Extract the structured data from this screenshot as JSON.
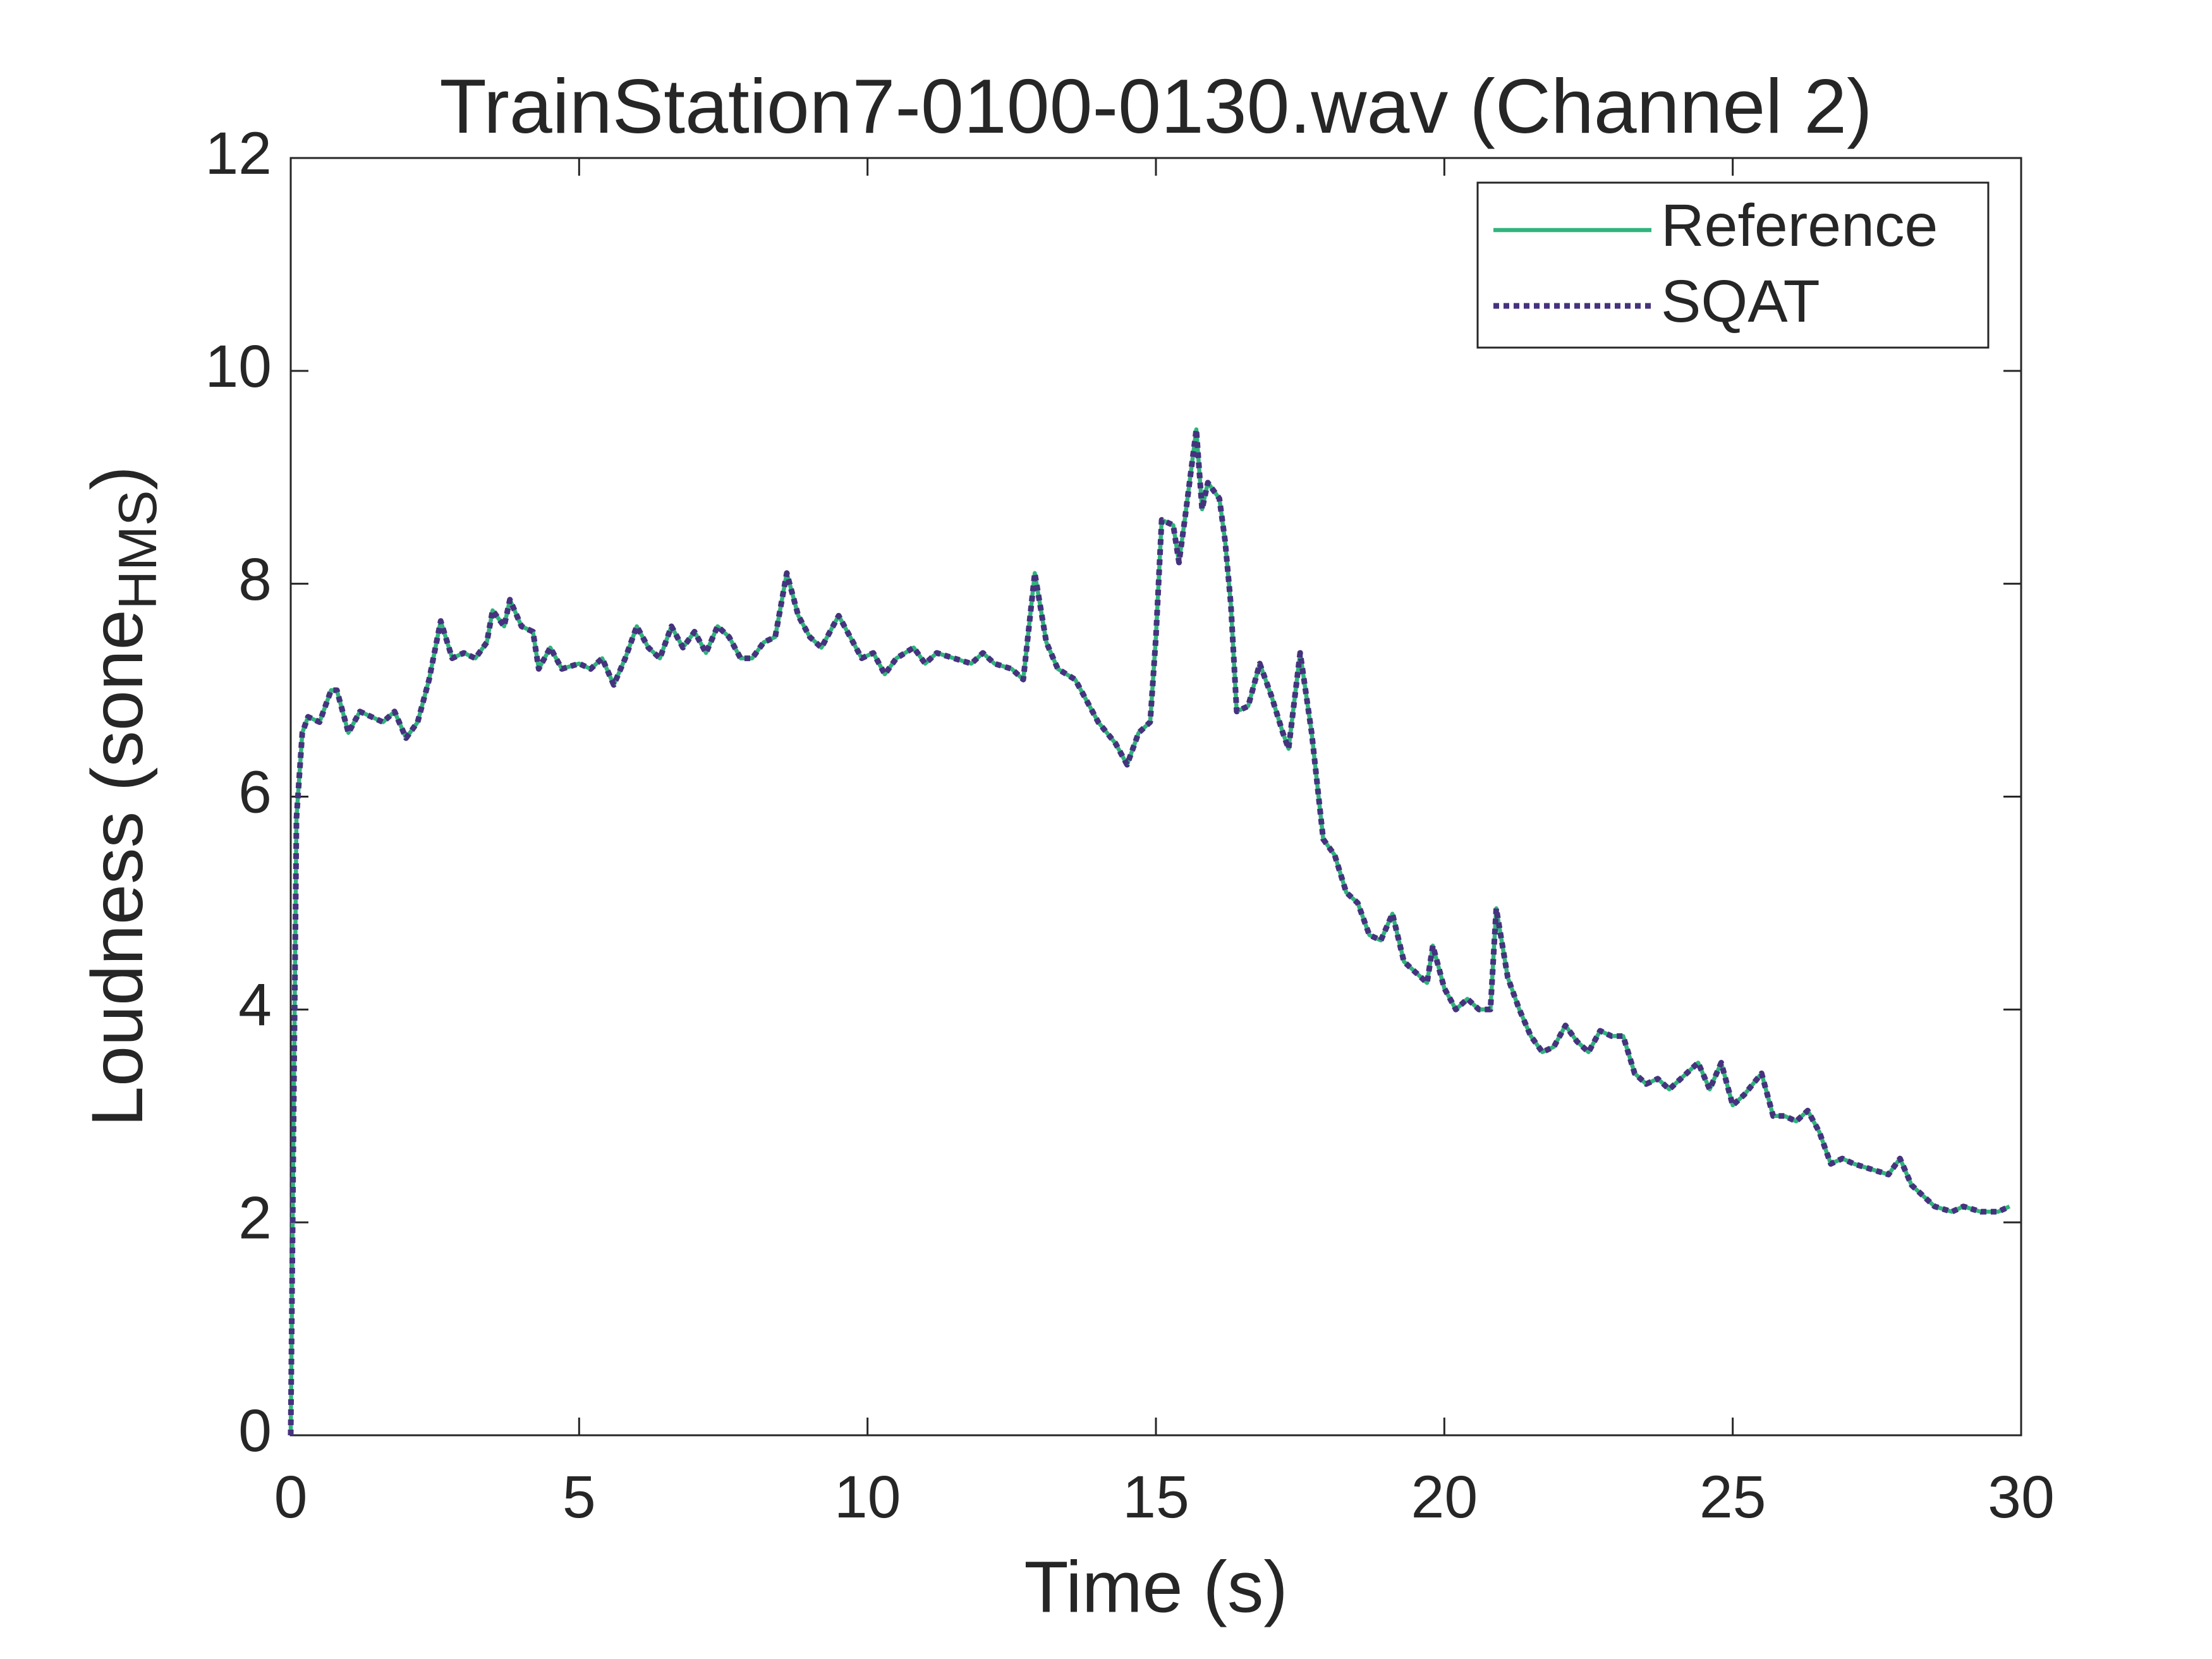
{
  "chart_data": {
    "type": "line",
    "title": "TrainStation7-0100-0130.wav (Channel 2)",
    "xlabel": "Time (s)",
    "ylabel": {
      "text": "Loudness (sone",
      "subscript": "HMS",
      "suffix": ")"
    },
    "x": [
      0,
      0.05,
      0.1,
      0.2,
      0.3,
      0.5,
      0.7,
      0.8,
      1.0,
      1.2,
      1.4,
      1.6,
      1.8,
      2.0,
      2.2,
      2.4,
      2.6,
      2.8,
      3.0,
      3.2,
      3.4,
      3.5,
      3.7,
      3.8,
      4.0,
      4.2,
      4.3,
      4.5,
      4.7,
      5.0,
      5.2,
      5.4,
      5.6,
      5.8,
      6.0,
      6.2,
      6.4,
      6.6,
      6.8,
      7.0,
      7.2,
      7.4,
      7.6,
      7.8,
      8.0,
      8.2,
      8.4,
      8.6,
      8.8,
      9.0,
      9.2,
      9.5,
      9.7,
      9.9,
      10.1,
      10.3,
      10.5,
      10.8,
      11.0,
      11.2,
      11.5,
      11.8,
      12.0,
      12.2,
      12.5,
      12.7,
      12.9,
      13.1,
      13.3,
      13.6,
      13.8,
      14.0,
      14.3,
      14.5,
      14.7,
      14.9,
      15.0,
      15.1,
      15.3,
      15.4,
      15.5,
      15.7,
      15.8,
      15.9,
      16.1,
      16.2,
      16.3,
      16.4,
      16.6,
      16.8,
      17.0,
      17.2,
      17.3,
      17.5,
      17.7,
      17.9,
      18.1,
      18.3,
      18.5,
      18.7,
      18.9,
      19.1,
      19.3,
      19.5,
      19.7,
      19.8,
      20.0,
      20.2,
      20.4,
      20.6,
      20.8,
      20.9,
      21.1,
      21.3,
      21.5,
      21.7,
      21.9,
      22.1,
      22.3,
      22.5,
      22.7,
      22.9,
      23.1,
      23.3,
      23.5,
      23.7,
      23.9,
      24.1,
      24.4,
      24.6,
      24.8,
      25.0,
      25.2,
      25.5,
      25.7,
      25.9,
      26.1,
      26.3,
      26.5,
      26.7,
      26.9,
      27.1,
      27.4,
      27.7,
      27.9,
      28.1,
      28.3,
      28.5,
      28.8,
      29.0,
      29.3,
      29.6,
      29.8
    ],
    "series": [
      {
        "name": "Reference",
        "color": "#2fb47c",
        "dash": false,
        "values": [
          0,
          3,
          5.8,
          6.6,
          6.75,
          6.7,
          7.0,
          7.0,
          6.6,
          6.8,
          6.75,
          6.7,
          6.8,
          6.55,
          6.7,
          7.1,
          7.65,
          7.3,
          7.35,
          7.3,
          7.45,
          7.75,
          7.6,
          7.85,
          7.6,
          7.55,
          7.2,
          7.4,
          7.2,
          7.25,
          7.2,
          7.3,
          7.05,
          7.3,
          7.6,
          7.4,
          7.3,
          7.6,
          7.4,
          7.55,
          7.35,
          7.6,
          7.5,
          7.3,
          7.3,
          7.45,
          7.5,
          8.1,
          7.7,
          7.5,
          7.4,
          7.7,
          7.5,
          7.3,
          7.35,
          7.15,
          7.3,
          7.4,
          7.25,
          7.35,
          7.3,
          7.25,
          7.35,
          7.25,
          7.2,
          7.1,
          8.1,
          7.45,
          7.2,
          7.1,
          6.9,
          6.7,
          6.5,
          6.3,
          6.6,
          6.7,
          7.5,
          8.6,
          8.55,
          8.2,
          8.6,
          9.45,
          8.7,
          8.95,
          8.8,
          8.4,
          7.8,
          6.8,
          6.85,
          7.25,
          6.95,
          6.6,
          6.45,
          7.35,
          6.6,
          5.6,
          5.45,
          5.1,
          5.0,
          4.7,
          4.65,
          4.9,
          4.45,
          4.35,
          4.25,
          4.6,
          4.2,
          4.0,
          4.1,
          4.0,
          4.0,
          4.95,
          4.3,
          4.0,
          3.75,
          3.6,
          3.65,
          3.85,
          3.7,
          3.6,
          3.8,
          3.75,
          3.75,
          3.4,
          3.3,
          3.35,
          3.25,
          3.35,
          3.5,
          3.25,
          3.5,
          3.1,
          3.2,
          3.4,
          3.0,
          3.0,
          2.95,
          3.05,
          2.85,
          2.55,
          2.6,
          2.55,
          2.5,
          2.45,
          2.6,
          2.35,
          2.25,
          2.15,
          2.1,
          2.15,
          2.1,
          2.1,
          2.15
        ]
      },
      {
        "name": "SQAT",
        "color": "#46327e",
        "dash": true,
        "values": [
          0,
          3,
          5.8,
          6.6,
          6.75,
          6.7,
          7.0,
          7.0,
          6.6,
          6.8,
          6.75,
          6.7,
          6.8,
          6.55,
          6.7,
          7.1,
          7.65,
          7.3,
          7.35,
          7.3,
          7.45,
          7.75,
          7.6,
          7.85,
          7.6,
          7.55,
          7.2,
          7.4,
          7.2,
          7.25,
          7.2,
          7.3,
          7.05,
          7.3,
          7.6,
          7.4,
          7.3,
          7.6,
          7.4,
          7.55,
          7.35,
          7.6,
          7.5,
          7.3,
          7.3,
          7.45,
          7.5,
          8.1,
          7.7,
          7.5,
          7.4,
          7.7,
          7.5,
          7.3,
          7.35,
          7.15,
          7.3,
          7.4,
          7.25,
          7.35,
          7.3,
          7.25,
          7.35,
          7.25,
          7.2,
          7.1,
          8.1,
          7.45,
          7.2,
          7.1,
          6.9,
          6.7,
          6.5,
          6.3,
          6.6,
          6.7,
          7.5,
          8.6,
          8.55,
          8.2,
          8.6,
          9.45,
          8.7,
          8.95,
          8.8,
          8.4,
          7.8,
          6.8,
          6.85,
          7.25,
          6.95,
          6.6,
          6.45,
          7.35,
          6.6,
          5.6,
          5.45,
          5.1,
          5.0,
          4.7,
          4.65,
          4.9,
          4.45,
          4.35,
          4.25,
          4.6,
          4.2,
          4.0,
          4.1,
          4.0,
          4.0,
          4.95,
          4.3,
          4.0,
          3.75,
          3.6,
          3.65,
          3.85,
          3.7,
          3.6,
          3.8,
          3.75,
          3.75,
          3.4,
          3.3,
          3.35,
          3.25,
          3.35,
          3.5,
          3.25,
          3.5,
          3.1,
          3.2,
          3.4,
          3.0,
          3.0,
          2.95,
          3.05,
          2.85,
          2.55,
          2.6,
          2.55,
          2.5,
          2.45,
          2.6,
          2.35,
          2.25,
          2.15,
          2.1,
          2.15,
          2.1,
          2.1,
          2.15
        ]
      }
    ],
    "xlim": [
      0,
      30
    ],
    "xticks": [
      0,
      5,
      10,
      15,
      20,
      25,
      30
    ],
    "ylim": [
      0,
      12
    ],
    "yticks": [
      0,
      2,
      4,
      6,
      8,
      10,
      12
    ],
    "grid": false,
    "legend": "upper right"
  }
}
